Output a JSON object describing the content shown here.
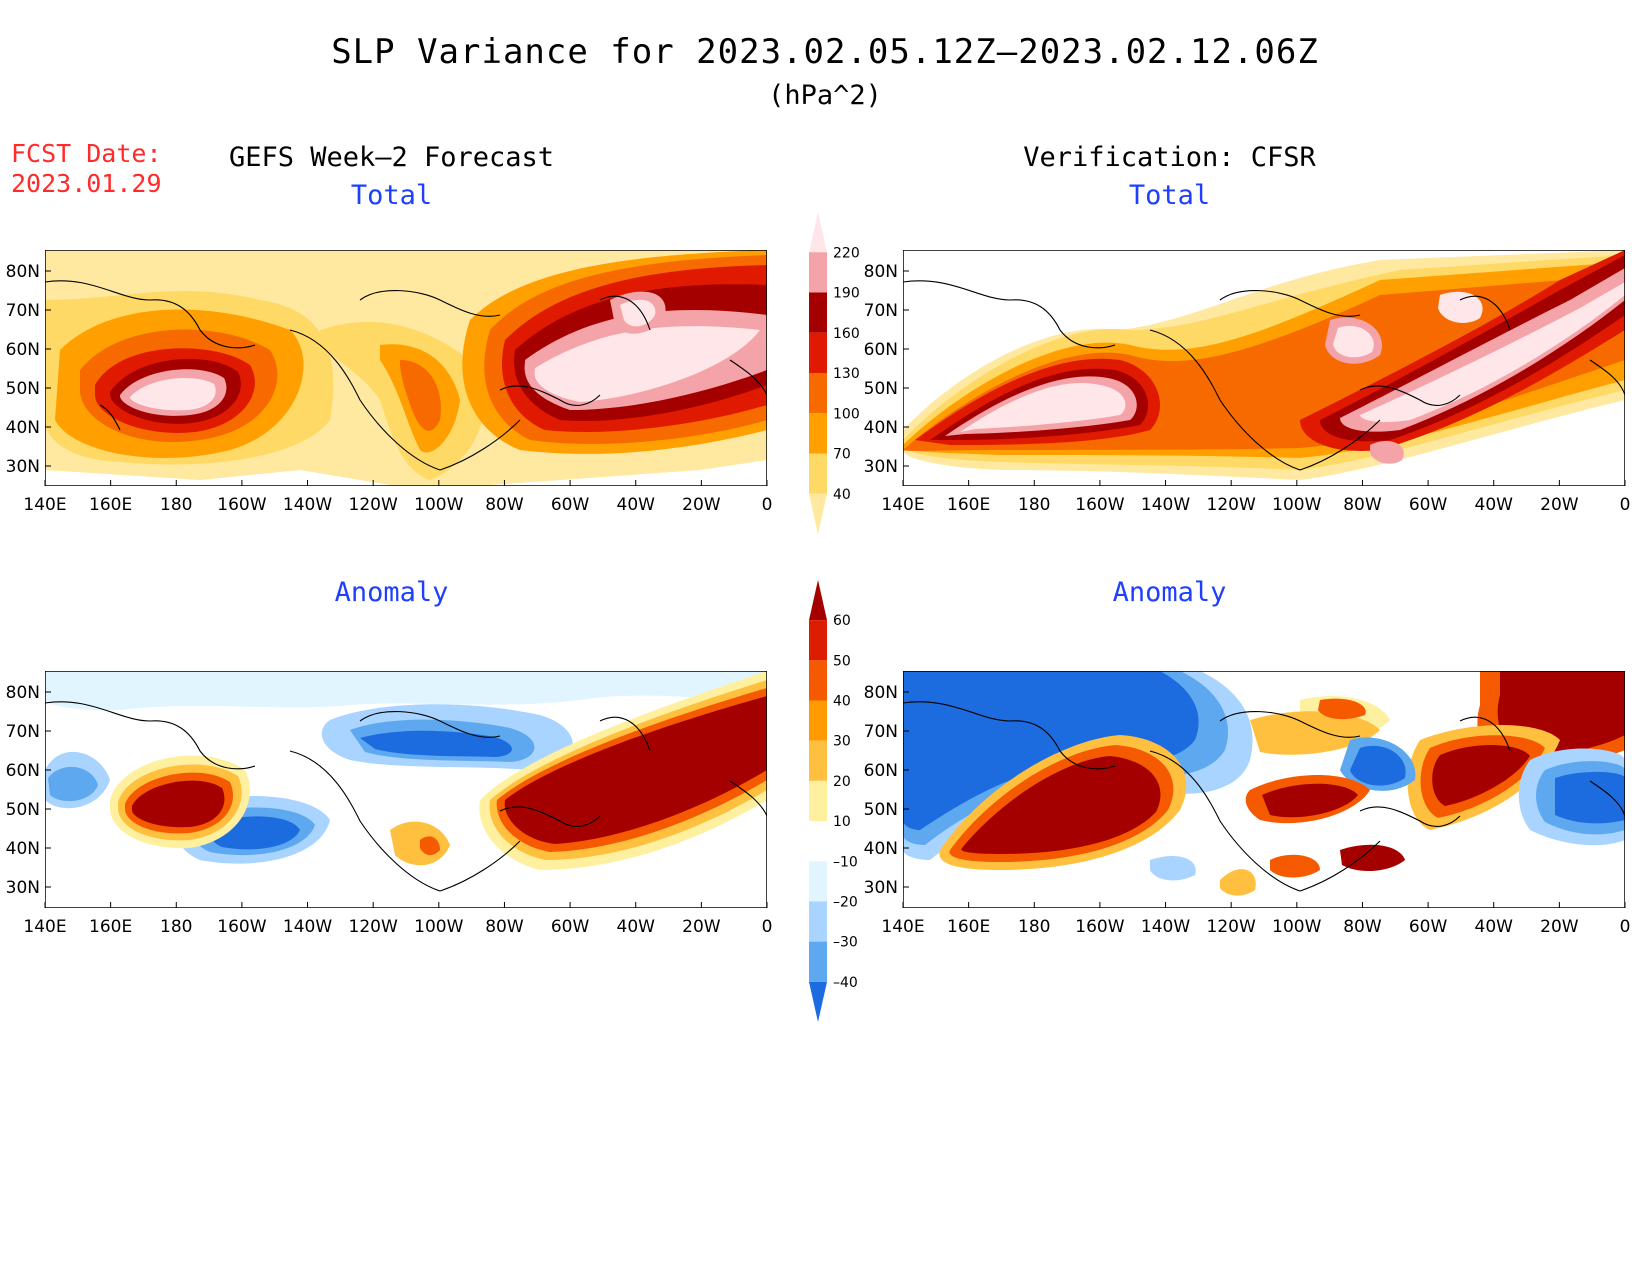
{
  "title": "SLP Variance for 2023.02.05.12Z–2023.02.12.06Z",
  "units": "(hPa^2)",
  "fcst_label": "FCST Date:",
  "fcst_date": "2023.01.29",
  "columns": {
    "left": "GEFS Week–2 Forecast",
    "right": "Verification: CFSR"
  },
  "panels": {
    "total": "Total",
    "anomaly": "Anomaly"
  },
  "lon_labels": [
    "140E",
    "160E",
    "180",
    "160W",
    "140W",
    "120W",
    "100W",
    "80W",
    "60W",
    "40W",
    "20W",
    "0"
  ],
  "lat_labels": [
    "80N",
    "70N",
    "60N",
    "50N",
    "40N",
    "30N"
  ],
  "total_colorbar": {
    "levels": [
      "220",
      "190",
      "160",
      "130",
      "100",
      "70",
      "40"
    ],
    "colors": [
      "#ffe6e8",
      "#f4a3a8",
      "#a50000",
      "#e01a00",
      "#f76a00",
      "#ffa000",
      "#ffd966",
      "#ffe8a0"
    ]
  },
  "anomaly_colorbar": {
    "levels": [
      "60",
      "50",
      "40",
      "30",
      "20",
      "10",
      "–10",
      "–20",
      "–30",
      "–40"
    ],
    "colors": [
      "#a50000",
      "#dd1d00",
      "#f55a00",
      "#ff9a00",
      "#ffc040",
      "#fff0a0",
      "#ffffff",
      "#e0f5ff",
      "#a8d4ff",
      "#5ea8f0",
      "#1c6ce0"
    ]
  }
}
